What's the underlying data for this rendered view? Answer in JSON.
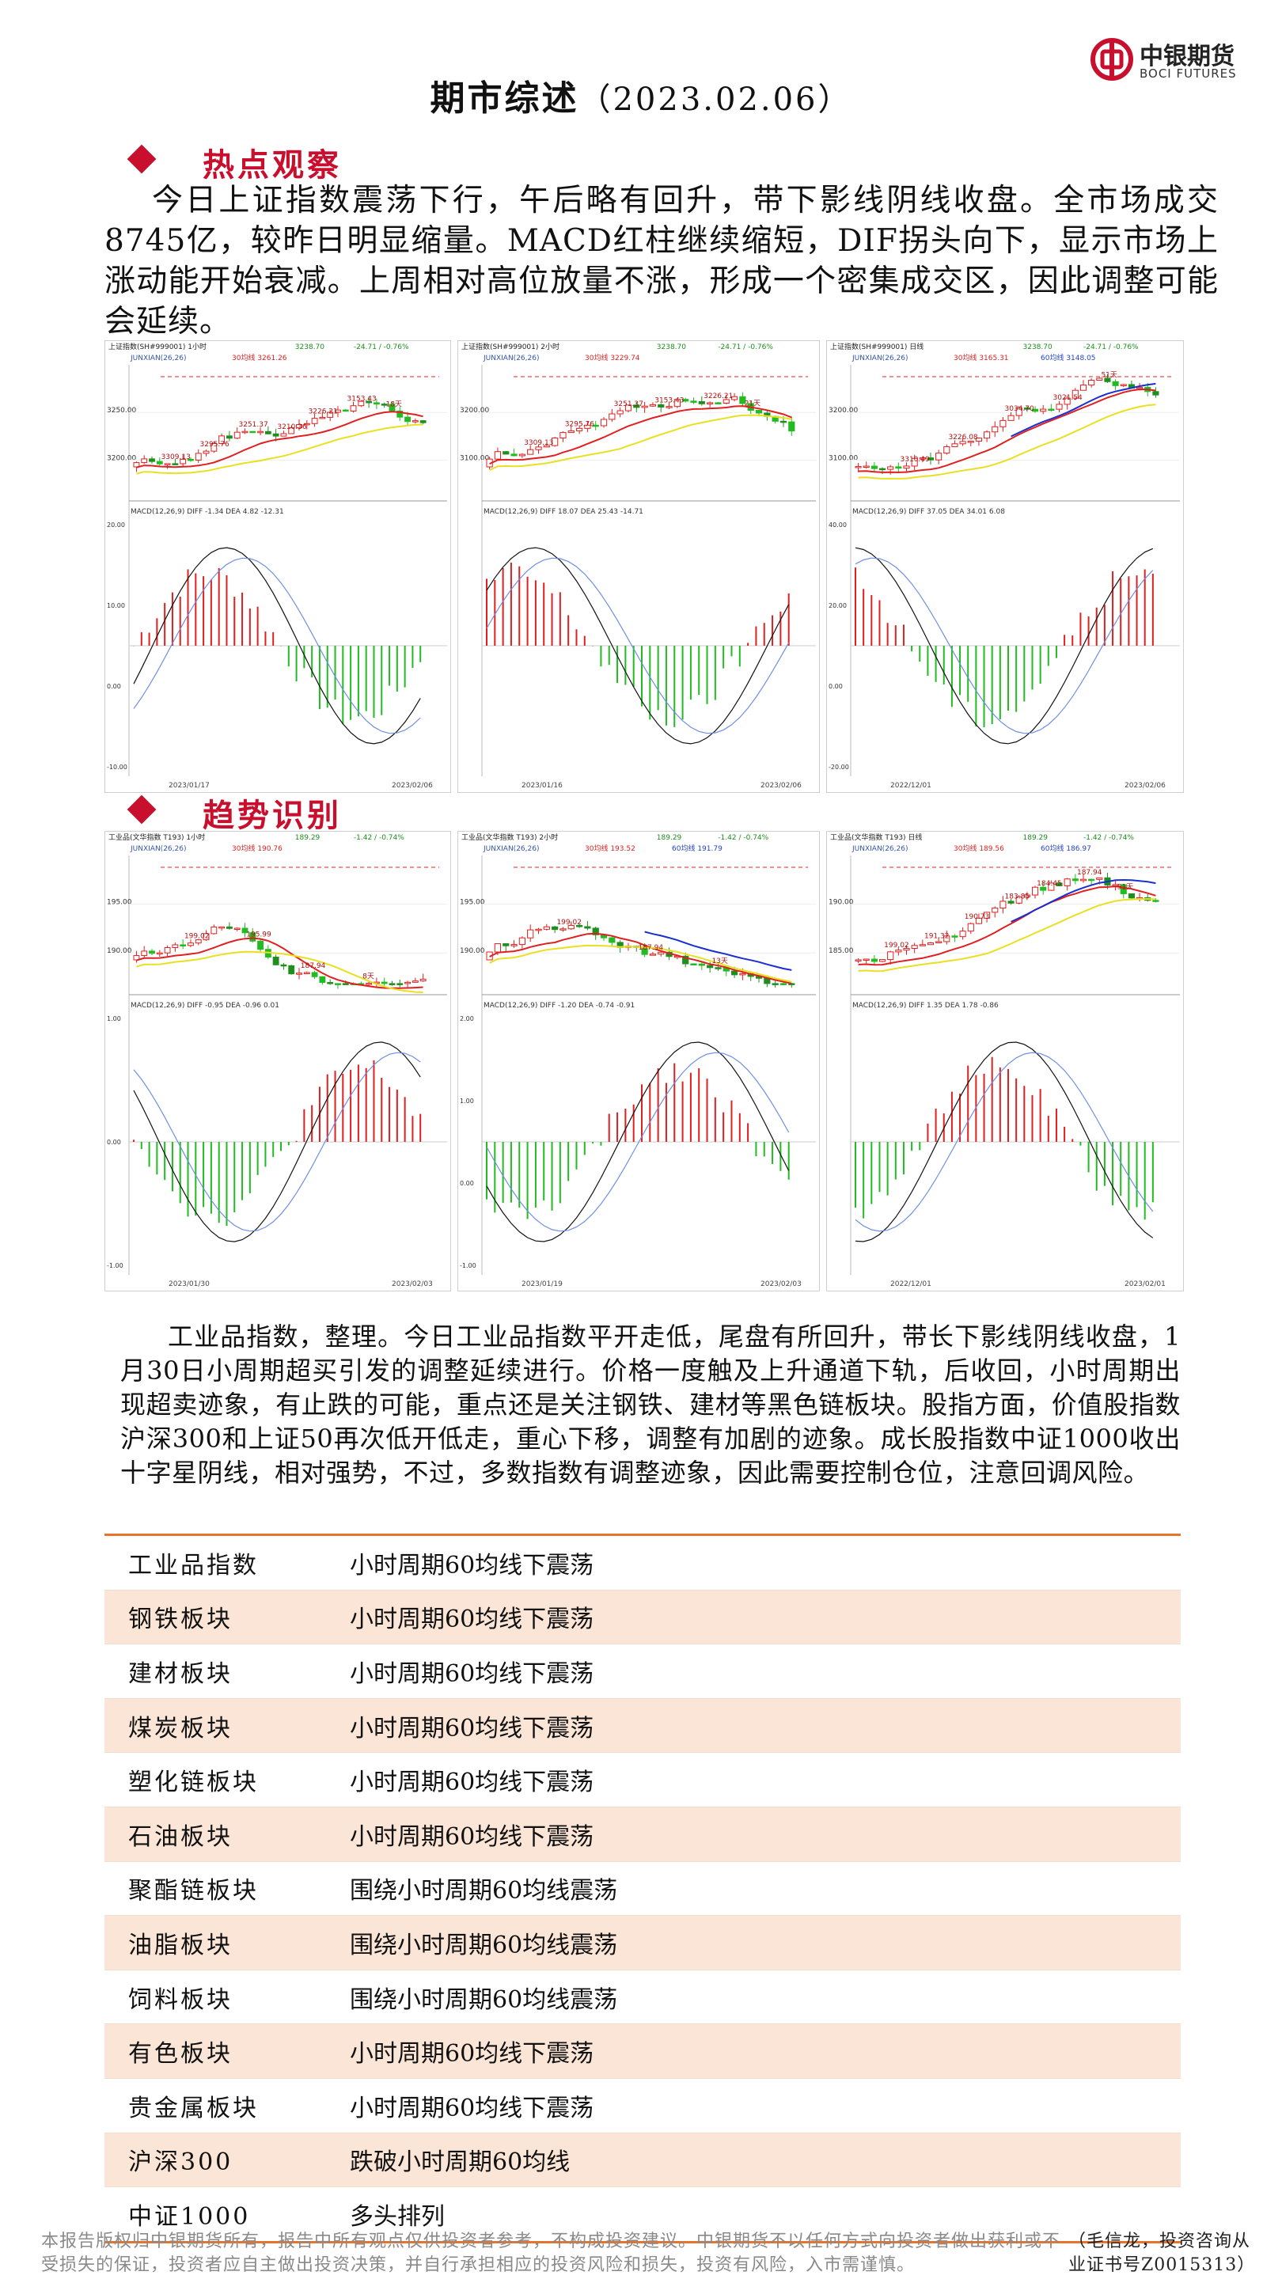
{
  "brand": {
    "name_cn": "中银期货",
    "name_en": "BOCI FUTURES",
    "colors": {
      "red": "#c8102e",
      "orange": "#e8742c",
      "row_shade": "#fbe5d6"
    }
  },
  "header": {
    "title": "期市综述",
    "date": "（2023.02.06）"
  },
  "sections": {
    "hot": "热点观察",
    "trend": "趋势识别"
  },
  "hot_paragraph": "今日上证指数震荡下行，午后略有回升，带下影线阴线收盘。全市场成交8745亿，较昨日明显缩量。MACD红柱继续缩短，DIF拐头向下，显示市场上涨动能开始衰减。上周相对高位放量不涨，形成一个密集成交区，因此调整可能会延续。",
  "trend_paragraph": "工业品指数，整理。今日工业品指数平开走低，尾盘有所回升，带长下影线阴线收盘，1月30日小周期超买引发的调整延续进行。价格一度触及上升通道下轨，后收回，小时周期出现超卖迹象，有止跌的可能，重点还是关注钢铁、建材等黑色链板块。股指方面，价值股指数沪深300和上证50再次低开低走，重心下移，调整有加剧的迹象。成长股指数中证1000收出十字星阴线，相对强势，不过，多数指数有调整迹象，因此需要控制仓位，注意回调风险。",
  "charts": [
    {
      "header": "上证指数(SH#999001) 1小时",
      "stats": [
        "3238.70",
        "-24.71 / -0.76%"
      ],
      "ma_line": "JUNXIAN(26,26)",
      "ma_vals": [
        "30均线 3261.26"
      ],
      "yticks": [
        "3250.00",
        "3200.00"
      ],
      "labels": [
        "3309.13",
        "3295.76",
        "3251.37",
        "3210.36",
        "3226.21",
        "3153.43",
        "18天"
      ],
      "macd": "MACD(12,26,9)  DIFF -1.34  DEA 4.82  -12.31",
      "macd_ticks": [
        "20.00",
        "10.00",
        "0.00",
        "-10.00"
      ],
      "dates": [
        "2023/01/17",
        "2023/02/06"
      ]
    },
    {
      "header": "上证指数(SH#999001) 2小时",
      "stats": [
        "3238.70",
        "-24.71 / -0.76%"
      ],
      "ma_line": "JUNXIAN(26,26)",
      "ma_vals": [
        "30均线 3229.74"
      ],
      "yticks": [
        "3200.00",
        "3100.00"
      ],
      "labels": [
        "3309.13",
        "3295.76",
        "3251.37",
        "3153.43",
        "3226.21",
        "21天"
      ],
      "macd": "MACD(12,26,9)  DIFF 18.07  DEA 25.43  -14.71",
      "macd_ticks": [],
      "dates": [
        "2023/01/16",
        "2023/02/06"
      ]
    },
    {
      "header": "上证指数(SH#999001) 日线",
      "stats": [
        "3238.70",
        "-24.71 / -0.76%"
      ],
      "ma_line": "JUNXIAN(26,26)",
      "ma_vals": [
        "30均线 3165.31",
        "60均线 3148.05"
      ],
      "yticks": [
        "3200.00",
        "3100.00"
      ],
      "labels": [
        "3310.49",
        "3226.08",
        "3034.70",
        "3021.54",
        "51天"
      ],
      "macd": "MACD(12,26,9)  DIFF 37.05  DEA 34.01  6.08",
      "macd_ticks": [
        "40.00",
        "20.00",
        "0.00",
        "-20.00"
      ],
      "dates": [
        "2022/12/01",
        "2023/02/06"
      ]
    },
    {
      "header": "工业品(文华指数 T193) 1小时",
      "stats": [
        "189.29",
        "-1.42 / -0.74%"
      ],
      "ma_line": "JUNXIAN(26,26)",
      "ma_vals": [
        "30均线 190.76"
      ],
      "yticks": [
        "195.00",
        "190.00"
      ],
      "labels": [
        "199.02",
        "195.99",
        "187.94",
        "8天"
      ],
      "macd": "MACD(12,26,9)  DIFF -0.95  DEA -0.96  0.01",
      "macd_ticks": [
        "1.00",
        "0.00",
        "-1.00"
      ],
      "dates": [
        "2023/01/30",
        "2023/02/03"
      ]
    },
    {
      "header": "工业品(文华指数 T193) 2小时",
      "stats": [
        "189.29",
        "-1.42 / -0.74%"
      ],
      "ma_line": "JUNXIAN(26,26)",
      "ma_vals": [
        "30均线 193.52",
        "60均线 191.79"
      ],
      "yticks": [
        "195.00",
        "190.00"
      ],
      "labels": [
        "199.02",
        "187.94",
        "13天"
      ],
      "macd": "MACD(12,26,9)  DIFF -1.20  DEA -0.74  -0.91",
      "macd_ticks": [
        "2.00",
        "1.00",
        "0.00",
        "-1.00"
      ],
      "dates": [
        "2023/01/19",
        "2023/02/03"
      ]
    },
    {
      "header": "工业品(文华指数 T193) 日线",
      "stats": [
        "189.29",
        "-1.42 / -0.74%"
      ],
      "ma_line": "JUNXIAN(26,26)",
      "ma_vals": [
        "30均线 189.56",
        "60均线 186.97"
      ],
      "yticks": [
        "190.00",
        "185.00"
      ],
      "labels": [
        "199.02",
        "191.32",
        "190.73",
        "183.85",
        "184.45",
        "187.94",
        "51天"
      ],
      "macd": "MACD(12,26,9)  DIFF 1.35  DEA 1.78  -0.86",
      "macd_ticks": [],
      "dates": [
        "2022/12/01",
        "2023/02/01"
      ]
    }
  ],
  "table": [
    {
      "name": "工业品指数",
      "status": "小时周期60均线下震荡"
    },
    {
      "name": "钢铁板块",
      "status": "小时周期60均线下震荡"
    },
    {
      "name": "建材板块",
      "status": "小时周期60均线下震荡"
    },
    {
      "name": "煤炭板块",
      "status": "小时周期60均线下震荡"
    },
    {
      "name": "塑化链板块",
      "status": "小时周期60均线下震荡"
    },
    {
      "name": "石油板块",
      "status": "小时周期60均线下震荡"
    },
    {
      "name": "聚酯链板块",
      "status": "围绕小时周期60均线震荡"
    },
    {
      "name": "油脂板块",
      "status": "围绕小时周期60均线震荡"
    },
    {
      "name": "饲料板块",
      "status": "围绕小时周期60均线震荡"
    },
    {
      "name": "有色板块",
      "status": "小时周期60均线下震荡"
    },
    {
      "name": "贵金属板块",
      "status": "小时周期60均线下震荡"
    },
    {
      "name": "沪深300",
      "status": "跌破小时周期60均线"
    },
    {
      "name": "中证1000",
      "status": "多头排列"
    }
  ],
  "footer": {
    "disclaimer": "本报告版权归中银期货所有，报告中所有观点仅供投资者参考，不构成投资建议。中银期货不以任何方式向投资者做出获利或不受损失的保证，投资者应自主做出投资决策，并自行承担相应的投资风险和损失，投资有风险，入市需谨慎。",
    "analyst": "（毛信龙，投资咨询从业证书号Z0015313）"
  }
}
